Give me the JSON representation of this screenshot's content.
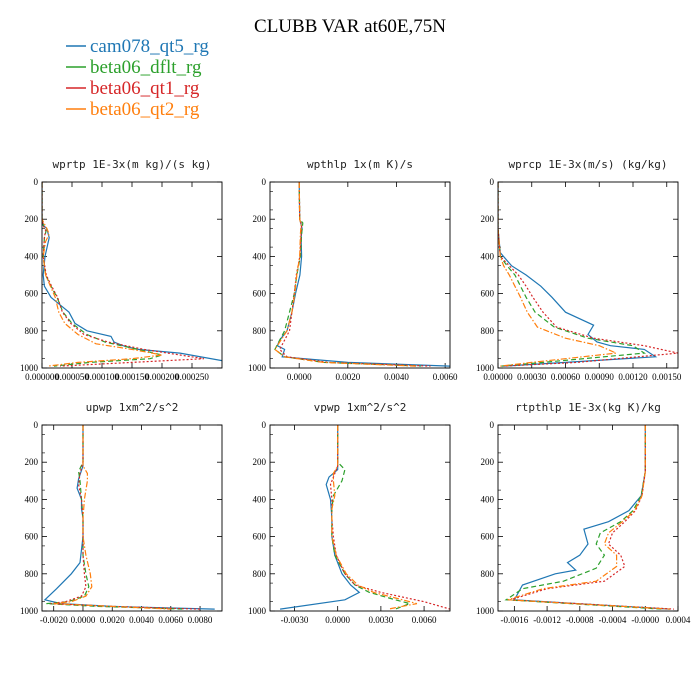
{
  "figure": {
    "title": "CLUBB VAR at60E,75N"
  },
  "legend": [
    {
      "name": "cam078_qt5_rg",
      "color": "#1f77b4",
      "dash": "solid"
    },
    {
      "name": "beta06_dflt_rg",
      "color": "#2ca02c",
      "dash": "dashed"
    },
    {
      "name": "beta06_qt1_rg",
      "color": "#d62728",
      "dash": "dotted"
    },
    {
      "name": "beta06_qt2_rg",
      "color": "#ff7f0e",
      "dash": "dashdot"
    }
  ],
  "chart_data": [
    {
      "type": "line",
      "title": "wprtp  1E-3x(m kg)/(s kg)",
      "xlim": [
        0,
        0.0003
      ],
      "ylim": [
        1000,
        0
      ],
      "y_inverted": true,
      "xticks": [
        0,
        5e-05,
        0.0001,
        0.00015,
        0.0002,
        0.00025
      ],
      "xtick_labels": [
        "0.000000",
        "0.000050",
        "0.000100",
        "0.000150",
        "0.000200",
        "0.000250"
      ],
      "yticks": [
        0,
        200,
        400,
        600,
        800,
        1000
      ],
      "series": [
        {
          "name": "cam078_qt5_rg",
          "x": [
            0,
            0,
            1e-06,
            8e-06,
            1.2e-05,
            5e-06,
            2e-06,
            4e-06,
            1.5e-05,
            3e-05,
            4.5e-05,
            5.5e-05,
            7.5e-05,
            0.000115,
            0.00012,
            0.000135,
            0.00016,
            0.00023,
            0.0003
          ],
          "y": [
            0,
            200,
            230,
            250,
            300,
            400,
            500,
            560,
            620,
            660,
            700,
            760,
            800,
            830,
            860,
            880,
            900,
            920,
            960
          ]
        },
        {
          "name": "beta06_dflt_rg",
          "x": [
            0,
            0,
            3e-06,
            7e-06,
            4e-06,
            2e-06,
            6e-06,
            1.5e-05,
            2.5e-05,
            3.5e-05,
            5e-05,
            7.5e-05,
            0.000105,
            0.00016,
            0.0002,
            0.00018,
            8e-05,
            2e-05
          ],
          "y": [
            0,
            200,
            240,
            260,
            300,
            400,
            500,
            560,
            620,
            700,
            760,
            820,
            860,
            900,
            930,
            950,
            970,
            990
          ]
        },
        {
          "name": "beta06_qt1_rg",
          "x": [
            0,
            0,
            3e-06,
            6e-06,
            4e-06,
            2e-06,
            7e-06,
            1.6e-05,
            2.6e-05,
            3.4e-05,
            4.8e-05,
            7e-05,
            0.00011,
            0.00017,
            0.00023,
            0.00027,
            0.00015,
            3e-05
          ],
          "y": [
            0,
            200,
            240,
            260,
            300,
            400,
            500,
            560,
            620,
            700,
            760,
            820,
            860,
            900,
            930,
            950,
            970,
            990
          ]
        },
        {
          "name": "beta06_qt2_rg",
          "x": [
            0,
            0,
            8e-06,
            1.2e-05,
            6e-06,
            2e-06,
            6e-06,
            1.4e-05,
            2.2e-05,
            2.8e-05,
            3.8e-05,
            6e-05,
            9e-05,
            0.00015,
            0.0002,
            0.00015,
            6e-05,
            1e-05
          ],
          "y": [
            0,
            200,
            250,
            280,
            320,
            400,
            500,
            560,
            620,
            700,
            760,
            820,
            870,
            900,
            930,
            950,
            970,
            990
          ]
        }
      ]
    },
    {
      "type": "line",
      "title": "wpthlp  1x(m K)/s",
      "xlim": [
        -0.0012,
        0.0062
      ],
      "ylim": [
        1000,
        0
      ],
      "y_inverted": true,
      "xticks": [
        0,
        0.002,
        0.004,
        0.006
      ],
      "xtick_labels": [
        "0.0000",
        "0.0020",
        "0.0040",
        "0.0060"
      ],
      "yticks": [
        0,
        200,
        400,
        600,
        800,
        1000
      ],
      "series": [
        {
          "name": "cam078_qt5_rg",
          "x": [
            0,
            2e-05,
            0.00012,
            8e-05,
            0.0001,
            3e-05,
            -0.00015,
            -0.0003,
            -0.0005,
            -0.0008,
            -0.0009,
            -0.0006,
            -0.0007,
            0.002,
            0.0062
          ],
          "y": [
            0,
            200,
            250,
            300,
            400,
            500,
            600,
            700,
            800,
            850,
            880,
            900,
            940,
            970,
            990
          ]
        },
        {
          "name": "beta06_dflt_rg",
          "x": [
            0,
            2e-05,
            0.00015,
            0.0001,
            5e-05,
            -0.0001,
            -0.0002,
            -0.0004,
            -0.0006,
            -0.001,
            -0.0006,
            0.001,
            0.005
          ],
          "y": [
            0,
            200,
            220,
            280,
            400,
            500,
            600,
            700,
            800,
            900,
            940,
            970,
            990
          ]
        },
        {
          "name": "beta06_qt1_rg",
          "x": [
            0,
            2e-05,
            0.0001,
            8e-05,
            3e-05,
            -0.00012,
            -0.0002,
            -0.0003,
            -0.0004,
            -0.0008,
            -0.0005,
            0.0012,
            0.0054
          ],
          "y": [
            0,
            200,
            230,
            280,
            400,
            500,
            600,
            700,
            800,
            900,
            940,
            970,
            990
          ]
        },
        {
          "name": "beta06_qt2_rg",
          "x": [
            0,
            2e-05,
            8e-05,
            5e-05,
            2e-05,
            -0.0001,
            -0.00018,
            -0.0003,
            -0.0005,
            -0.001,
            -0.0006,
            0.001,
            0.0048
          ],
          "y": [
            0,
            200,
            230,
            280,
            400,
            500,
            600,
            700,
            800,
            900,
            940,
            970,
            990
          ]
        }
      ]
    },
    {
      "type": "line",
      "title": "wprcp  1E-3x(m/s) (kg/kg)",
      "xlim": [
        0,
        0.0016
      ],
      "ylim": [
        1000,
        0
      ],
      "y_inverted": true,
      "xticks": [
        0,
        0.0003,
        0.0006,
        0.0009,
        0.0012,
        0.0015
      ],
      "xtick_labels": [
        "0.00000",
        "0.00030",
        "0.00060",
        "0.00090",
        "0.00120",
        "0.00150"
      ],
      "yticks": [
        0,
        200,
        400,
        600,
        800,
        1000
      ],
      "series": [
        {
          "name": "cam078_qt5_rg",
          "x": [
            0,
            0,
            2e-05,
            0.00012,
            0.00025,
            0.00038,
            0.00048,
            0.0006,
            0.00085,
            0.0008,
            0.00088,
            0.001,
            0.0013,
            0.0014,
            0.0006,
            5e-05
          ],
          "y": [
            0,
            250,
            380,
            450,
            500,
            560,
            620,
            700,
            770,
            820,
            860,
            880,
            900,
            940,
            970,
            990
          ]
        },
        {
          "name": "beta06_dflt_rg",
          "x": [
            0,
            0,
            2e-05,
            8e-05,
            0.00015,
            0.0002,
            0.00025,
            0.00033,
            0.0005,
            0.0008,
            0.0012,
            0.0013,
            0.0004,
            3e-05
          ],
          "y": [
            0,
            250,
            400,
            450,
            500,
            560,
            620,
            700,
            780,
            840,
            880,
            920,
            970,
            990
          ]
        },
        {
          "name": "beta06_qt1_rg",
          "x": [
            0,
            0,
            2e-05,
            0.0001,
            0.00018,
            0.00025,
            0.00031,
            0.0004,
            0.00052,
            0.00085,
            0.0013,
            0.0016,
            0.0007,
            5e-05
          ],
          "y": [
            0,
            250,
            400,
            450,
            500,
            560,
            620,
            700,
            780,
            840,
            880,
            920,
            970,
            990
          ]
        },
        {
          "name": "beta06_qt2_rg",
          "x": [
            0,
            0,
            2e-05,
            5e-05,
            0.0001,
            0.00015,
            0.0002,
            0.00026,
            0.00035,
            0.0006,
            0.0009,
            0.00105,
            0.0003,
            2e-05
          ],
          "y": [
            0,
            250,
            400,
            450,
            500,
            560,
            620,
            700,
            780,
            840,
            880,
            920,
            970,
            990
          ]
        }
      ]
    },
    {
      "type": "line",
      "title": "upwp  1xm^2/s^2",
      "xlim": [
        -0.0028,
        0.0095
      ],
      "ylim": [
        1000,
        0
      ],
      "y_inverted": true,
      "xticks": [
        -0.002,
        0,
        0.002,
        0.004,
        0.006,
        0.008
      ],
      "xtick_labels": [
        "-0.0020",
        "0.0000",
        "0.0020",
        "0.0040",
        "0.0060",
        "0.0080"
      ],
      "yticks": [
        0,
        200,
        400,
        600,
        800,
        1000
      ],
      "series": [
        {
          "name": "cam078_qt5_rg",
          "x": [
            0,
            0,
            -0.0003,
            -0.0004,
            -0.0001,
            -0.0001,
            0,
            0,
            -0.0002,
            -0.0008,
            -0.0018,
            -0.0026,
            -0.0015,
            0.002,
            0.009
          ],
          "y": [
            0,
            220,
            290,
            340,
            400,
            450,
            500,
            600,
            740,
            800,
            880,
            940,
            960,
            975,
            990
          ]
        },
        {
          "name": "beta06_dflt_rg",
          "x": [
            0,
            0,
            -0.0003,
            -0.0002,
            -0.0001,
            0,
            0,
            0,
            0.0002,
            0.0004,
            0.0001,
            -0.001,
            -0.0025,
            0.001,
            0.007
          ],
          "y": [
            0,
            200,
            250,
            300,
            400,
            500,
            600,
            700,
            800,
            870,
            920,
            950,
            960,
            975,
            990
          ]
        },
        {
          "name": "beta06_qt1_rg",
          "x": [
            0,
            0,
            -0.0002,
            -0.0003,
            -0.0001,
            0,
            0,
            0,
            0.0001,
            0.0002,
            -0.0001,
            -0.0012,
            -0.0022,
            0.002,
            0.008
          ],
          "y": [
            0,
            200,
            260,
            320,
            400,
            500,
            600,
            700,
            800,
            870,
            920,
            950,
            960,
            975,
            990
          ]
        },
        {
          "name": "beta06_qt2_rg",
          "x": [
            0,
            0,
            0.0003,
            0.0003,
            0.0001,
            0,
            0,
            0.0002,
            0.0005,
            0.0006,
            0.0002,
            -0.0008,
            -0.002,
            0.002,
            0.006
          ],
          "y": [
            0,
            220,
            260,
            300,
            400,
            500,
            600,
            700,
            800,
            870,
            920,
            950,
            960,
            975,
            990
          ]
        }
      ]
    },
    {
      "type": "line",
      "title": "vpwp  1xm^2/s^2",
      "xlim": [
        -0.0047,
        0.0078
      ],
      "ylim": [
        1000,
        0
      ],
      "y_inverted": true,
      "xticks": [
        -0.003,
        0,
        0.003,
        0.006
      ],
      "xtick_labels": [
        "-0.0030",
        "0.0000",
        "0.0030",
        "0.0060"
      ],
      "yticks": [
        0,
        200,
        400,
        600,
        800,
        1000
      ],
      "series": [
        {
          "name": "cam078_qt5_rg",
          "x": [
            0,
            0,
            -0.0006,
            -0.0008,
            -0.0005,
            -0.0004,
            -0.0004,
            -0.0002,
            0.0003,
            0.0009,
            0.0015,
            0.0005,
            -0.004
          ],
          "y": [
            0,
            240,
            280,
            320,
            400,
            500,
            600,
            700,
            800,
            860,
            900,
            940,
            990
          ]
        },
        {
          "name": "beta06_dflt_rg",
          "x": [
            0,
            0,
            0.0005,
            0.0003,
            -0.0003,
            -0.0004,
            -0.0004,
            -0.0002,
            0.0005,
            0.0012,
            0.0022,
            0.004,
            0.005,
            0.004
          ],
          "y": [
            0,
            200,
            240,
            300,
            380,
            450,
            600,
            700,
            800,
            860,
            900,
            940,
            960,
            990
          ]
        },
        {
          "name": "beta06_qt1_rg",
          "x": [
            0,
            0,
            -0.0003,
            -0.0005,
            -0.0004,
            -0.0004,
            -0.0003,
            -0.0001,
            0.0005,
            0.0012,
            0.003,
            0.006,
            0.0078
          ],
          "y": [
            0,
            220,
            280,
            320,
            400,
            500,
            600,
            700,
            800,
            860,
            900,
            950,
            990
          ]
        },
        {
          "name": "beta06_qt2_rg",
          "x": [
            0,
            0,
            -0.0003,
            -0.0003,
            -0.0002,
            -0.0004,
            -0.0004,
            -0.0001,
            0.0006,
            0.0014,
            0.0025,
            0.0045,
            0.0055,
            0.0035
          ],
          "y": [
            0,
            220,
            260,
            300,
            380,
            450,
            600,
            700,
            800,
            860,
            900,
            940,
            960,
            990
          ]
        }
      ]
    },
    {
      "type": "line",
      "title": "rtpthlp  1E-3x(kg K)/kg",
      "xlim": [
        -0.0018,
        0.0004
      ],
      "ylim": [
        1000,
        0
      ],
      "y_inverted": true,
      "xticks": [
        -0.0016,
        -0.0012,
        -0.0008,
        -0.0004,
        0,
        0.0004
      ],
      "xtick_labels": [
        "-0.0016",
        "-0.0012",
        "-0.0008",
        "-0.0004",
        "-0.0000",
        "0.0004"
      ],
      "yticks": [
        0,
        200,
        400,
        600,
        800,
        1000
      ],
      "series": [
        {
          "name": "cam078_qt5_rg",
          "x": [
            0,
            0,
            -5e-05,
            -0.0002,
            -0.00045,
            -0.00075,
            -0.0007,
            -0.0008,
            -0.00095,
            -0.00085,
            -0.0011,
            -0.0015,
            -0.0016,
            0.0003
          ],
          "y": [
            0,
            250,
            380,
            460,
            520,
            560,
            640,
            700,
            740,
            780,
            800,
            860,
            940,
            990
          ]
        },
        {
          "name": "beta06_dflt_rg",
          "x": [
            0,
            0,
            -5e-05,
            -0.00015,
            -0.0003,
            -0.00055,
            -0.0006,
            -0.0005,
            -0.0006,
            -0.001,
            -0.0015,
            -0.0017,
            0.0002
          ],
          "y": [
            0,
            250,
            380,
            460,
            520,
            580,
            640,
            700,
            770,
            840,
            880,
            940,
            990
          ]
        },
        {
          "name": "beta06_qt1_rg",
          "x": [
            0,
            0,
            -4e-05,
            -0.00012,
            -0.00025,
            -0.0004,
            -0.00045,
            -0.0003,
            -0.00025,
            -0.0005,
            -0.0012,
            -0.00165,
            0.00035
          ],
          "y": [
            0,
            250,
            380,
            460,
            520,
            580,
            640,
            700,
            760,
            840,
            880,
            940,
            990
          ]
        },
        {
          "name": "beta06_qt2_rg",
          "x": [
            0,
            0,
            -4e-05,
            -0.00013,
            -0.00028,
            -0.00045,
            -0.0005,
            -0.00035,
            -0.00035,
            -0.0006,
            -0.00125,
            -0.00168,
            0.0003
          ],
          "y": [
            0,
            250,
            380,
            460,
            520,
            580,
            640,
            700,
            760,
            840,
            880,
            940,
            990
          ]
        }
      ]
    }
  ]
}
